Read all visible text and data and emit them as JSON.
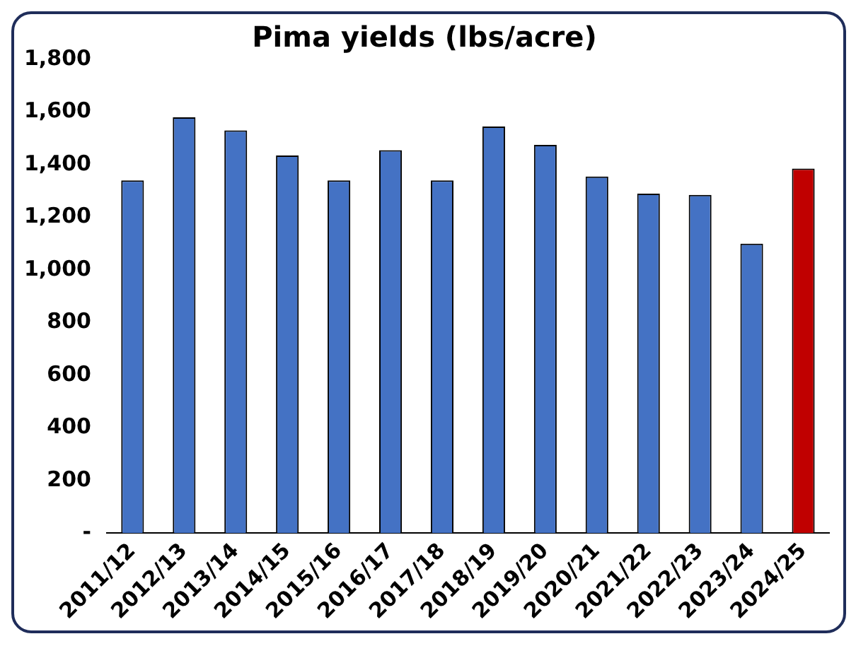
{
  "chart_data": {
    "type": "bar",
    "title": "Pima yields (lbs/acre)",
    "categories": [
      "2011/12",
      "2012/13",
      "2013/14",
      "2014/15",
      "2015/16",
      "2016/17",
      "2017/18",
      "2018/19",
      "2019/20",
      "2020/21",
      "2021/22",
      "2022/23",
      "2023/24",
      "2024/25"
    ],
    "values": [
      1340,
      1580,
      1530,
      1435,
      1340,
      1455,
      1340,
      1545,
      1475,
      1355,
      1290,
      1285,
      1100,
      1385
    ],
    "colors": [
      "#4472c4",
      "#4472c4",
      "#4472c4",
      "#4472c4",
      "#4472c4",
      "#4472c4",
      "#4472c4",
      "#4472c4",
      "#4472c4",
      "#4472c4",
      "#4472c4",
      "#4472c4",
      "#4472c4",
      "#c00000"
    ],
    "ylim": [
      0,
      1800
    ],
    "yticks": [
      {
        "value": 0,
        "label": "-"
      },
      {
        "value": 200,
        "label": "200"
      },
      {
        "value": 400,
        "label": "400"
      },
      {
        "value": 600,
        "label": "600"
      },
      {
        "value": 800,
        "label": "800"
      },
      {
        "value": 1000,
        "label": "1,000"
      },
      {
        "value": 1200,
        "label": "1,200"
      },
      {
        "value": 1400,
        "label": "1,400"
      },
      {
        "value": 1600,
        "label": "1,600"
      },
      {
        "value": 1800,
        "label": "1,800"
      }
    ],
    "grid": false,
    "legend": false
  }
}
